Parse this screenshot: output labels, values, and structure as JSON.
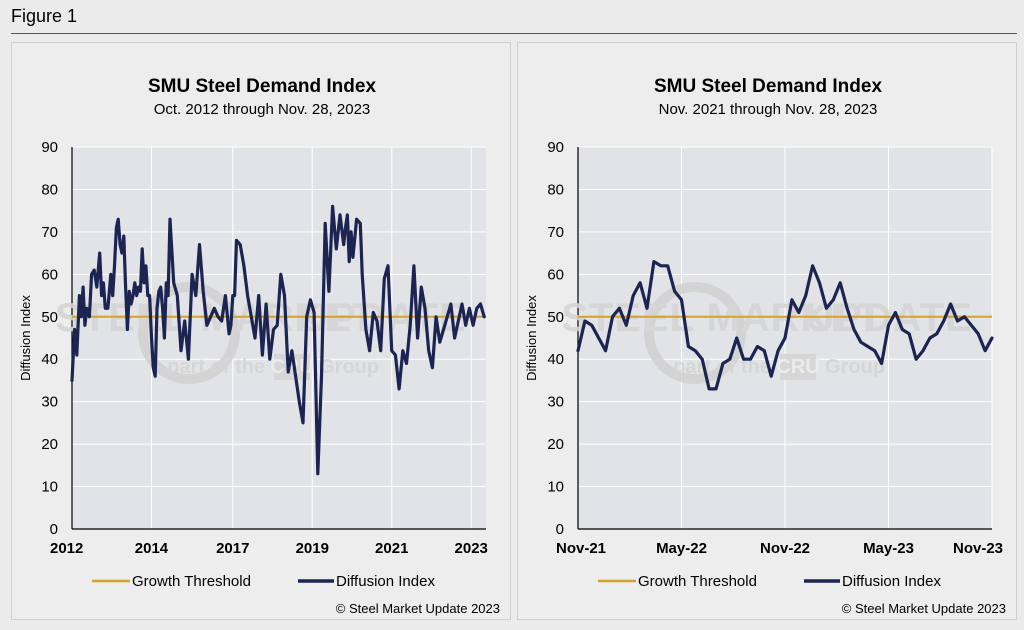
{
  "figure_label": "Figure 1",
  "colors": {
    "threshold": "#d4a12a",
    "diffusion": "#1c2452",
    "plot_bg": "#e2e3e7",
    "grid": "#ffffff"
  },
  "watermark": {
    "brand_left": "STEEL",
    "brand_mid": "MARKET",
    "brand_right": "UPDATE",
    "part_of": "part of the",
    "cru": "CRU",
    "group": "Group"
  },
  "chart_data": [
    {
      "type": "line",
      "title": "SMU Steel Demand Index",
      "subtitle": "Oct. 2012 through Nov. 28, 2023",
      "ylabel": "Diffusion Index",
      "ylim": [
        0,
        90
      ],
      "yticks": [
        "0",
        "10",
        "20",
        "30",
        "40",
        "50",
        "60",
        "70",
        "80",
        "90"
      ],
      "xlim": [
        2012.75,
        2023.95
      ],
      "xtick_values": [
        2012.75,
        2014.9,
        2017.1,
        2019.25,
        2021.4,
        2023.55
      ],
      "xticks": [
        "2012",
        "2014",
        "2017",
        "2019",
        "2021",
        "2023"
      ],
      "legend": {
        "threshold": "Growth Threshold",
        "diffusion": "Diffusion Index",
        "position": "bottom"
      },
      "copyright": "© Steel Market Update 2023",
      "threshold": 50,
      "series": [
        {
          "name": "Diffusion Index",
          "x": [
            2012.75,
            2012.82,
            2012.88,
            2012.95,
            2013.0,
            2013.05,
            2013.1,
            2013.15,
            2013.22,
            2013.28,
            2013.35,
            2013.42,
            2013.5,
            2013.55,
            2013.6,
            2013.65,
            2013.72,
            2013.8,
            2013.85,
            2013.9,
            2013.95,
            2014.0,
            2014.05,
            2014.1,
            2014.15,
            2014.2,
            2014.25,
            2014.3,
            2014.35,
            2014.4,
            2014.45,
            2014.5,
            2014.55,
            2014.6,
            2014.65,
            2014.7,
            2014.75,
            2014.8,
            2014.85,
            2014.9,
            2014.95,
            2015.0,
            2015.05,
            2015.1,
            2015.15,
            2015.2,
            2015.25,
            2015.3,
            2015.35,
            2015.4,
            2015.5,
            2015.6,
            2015.7,
            2015.8,
            2015.9,
            2016.0,
            2016.1,
            2016.2,
            2016.3,
            2016.4,
            2016.5,
            2016.6,
            2016.7,
            2016.8,
            2016.9,
            2017.0,
            2017.05,
            2017.1,
            2017.15,
            2017.2,
            2017.3,
            2017.4,
            2017.5,
            2017.6,
            2017.7,
            2017.8,
            2017.9,
            2018.0,
            2018.1,
            2018.2,
            2018.3,
            2018.4,
            2018.5,
            2018.6,
            2018.7,
            2018.8,
            2018.9,
            2019.0,
            2019.1,
            2019.2,
            2019.3,
            2019.4,
            2019.5,
            2019.6,
            2019.7,
            2019.8,
            2019.9,
            2020.0,
            2020.1,
            2020.15,
            2020.2,
            2020.25,
            2020.3,
            2020.35,
            2020.45,
            2020.55,
            2020.6,
            2020.7,
            2020.8,
            2020.9,
            2021.0,
            2021.1,
            2021.2,
            2021.3,
            2021.4,
            2021.5,
            2021.6,
            2021.7,
            2021.8,
            2021.9,
            2022.0,
            2022.1,
            2022.2,
            2022.3,
            2022.4,
            2022.5,
            2022.6,
            2022.7,
            2022.8,
            2022.9,
            2023.0,
            2023.1,
            2023.2,
            2023.3,
            2023.4,
            2023.5,
            2023.6,
            2023.7,
            2023.8,
            2023.9
          ],
          "values": [
            35,
            47,
            41,
            55,
            50,
            57,
            48,
            52,
            50,
            60,
            61,
            57,
            65,
            55,
            58,
            52,
            52,
            60,
            55,
            62,
            71,
            73,
            67,
            65,
            69,
            57,
            47,
            56,
            53,
            55,
            58,
            55,
            57,
            56,
            66,
            58,
            62,
            55,
            55,
            45,
            38,
            36,
            52,
            56,
            57,
            52,
            45,
            58,
            55,
            73,
            58,
            55,
            42,
            49,
            40,
            60,
            55,
            67,
            56,
            48,
            50,
            52,
            50,
            49,
            55,
            46,
            48,
            55,
            55,
            68,
            67,
            62,
            55,
            50,
            45,
            55,
            41,
            53,
            40,
            47,
            48,
            60,
            55,
            37,
            42,
            36,
            30,
            25,
            50,
            54,
            51,
            13,
            36,
            72,
            56,
            76,
            66,
            74,
            67,
            71,
            74,
            63,
            70,
            64,
            73,
            72,
            60,
            47,
            42,
            51,
            49,
            42,
            59,
            62,
            42,
            41,
            33,
            42,
            39,
            48,
            62,
            45,
            57,
            52,
            42,
            38,
            50,
            44,
            47,
            50,
            53,
            45,
            49,
            53,
            48,
            52,
            48,
            52,
            53,
            50
          ],
          "values_note": ""
        }
      ]
    },
    {
      "type": "line",
      "title": "SMU Steel Demand Index",
      "subtitle": "Nov. 2021 through Nov. 28, 2023",
      "ylabel": "Diffusion Index",
      "ylim": [
        0,
        90
      ],
      "yticks": [
        "0",
        "10",
        "20",
        "30",
        "40",
        "50",
        "60",
        "70",
        "80",
        "90"
      ],
      "xlim": [
        0,
        48
      ],
      "xtick_values": [
        0,
        12,
        24,
        36,
        48
      ],
      "xticks": [
        "Nov-21",
        "May-22",
        "Nov-22",
        "May-23",
        "Nov-23"
      ],
      "legend": {
        "threshold": "Growth Threshold",
        "diffusion": "Diffusion Index",
        "position": "bottom"
      },
      "copyright": "© Steel Market Update 2023",
      "threshold": 50,
      "series": [
        {
          "name": "Diffusion Index",
          "x": [
            0,
            0.8,
            1.6,
            2.4,
            3.2,
            4.0,
            4.8,
            5.6,
            6.4,
            7.2,
            8.0,
            8.8,
            9.6,
            10.4,
            11.2,
            12.0,
            12.8,
            13.6,
            14.4,
            15.2,
            16.0,
            16.8,
            17.6,
            18.4,
            19.2,
            20.0,
            20.8,
            21.6,
            22.4,
            23.2,
            24.0,
            24.8,
            25.6,
            26.4,
            27.2,
            28.0,
            28.8,
            29.6,
            30.4,
            31.2,
            32.0,
            32.8,
            33.6,
            34.4,
            35.2,
            36.0,
            36.8,
            37.6,
            38.4,
            39.2,
            40.0,
            40.8,
            41.6,
            42.4,
            43.2,
            44.0,
            44.8,
            45.6,
            46.4,
            47.2,
            48.0
          ],
          "values": [
            42,
            49,
            48,
            45,
            42,
            50,
            52,
            48,
            55,
            58,
            52,
            63,
            62,
            62,
            56,
            54,
            43,
            42,
            40,
            33,
            33,
            39,
            40,
            45,
            40,
            40,
            43,
            42,
            36,
            42,
            45,
            54,
            51,
            55,
            62,
            58,
            52,
            54,
            58,
            52,
            47,
            44,
            43,
            42,
            39,
            48,
            51,
            47,
            46,
            40,
            42,
            45,
            46,
            49,
            53,
            49,
            50,
            48,
            46,
            42,
            45
          ],
          "values_note": ""
        }
      ]
    }
  ]
}
